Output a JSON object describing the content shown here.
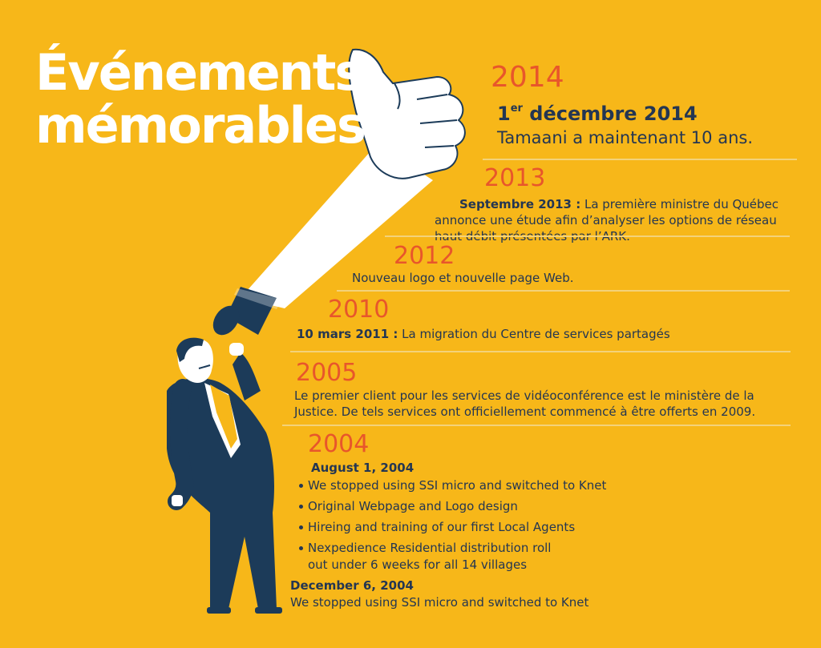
{
  "title": {
    "line1": "Événements",
    "line2": "mémorables"
  },
  "events": {
    "y2014": {
      "year": "2014",
      "date_main": "1",
      "date_sup": "er",
      "date_rest": " décembre 2014",
      "note": "Tamaani a maintenant 10 ans."
    },
    "y2013": {
      "year": "2013",
      "date": "Septembre 2013 :",
      "line1": " La première ministre du Québec",
      "line2": "annonce une étude afin d’analyser les options de réseau",
      "line3": "haut débit présentées par l’ARK."
    },
    "y2012": {
      "year": "2012",
      "text": "Nouveau logo et nouvelle page Web."
    },
    "y2010": {
      "year": "2010",
      "date": "10 mars 2011 :",
      "text": " La migration du Centre de services partagés"
    },
    "y2005": {
      "year": "2005",
      "line1": "Le premier client pour les services de vidéoconférence est le ministère de la",
      "line2": "Justice. De tels services ont officiellement commencé à être offerts en 2009."
    },
    "y2004": {
      "year": "2004",
      "date1": "August 1, 2004",
      "bullets": [
        "We stopped using SSI micro and switched to Knet",
        "Original Webpage and Logo design",
        "Hireing and training of our first Local Agents",
        "Nexpedience Residential distribution roll",
        "out under 6 weeks for all 14 villages"
      ],
      "date2": "December 6, 2004",
      "text2": "We stopped using SSI micro and switched to Knet"
    }
  },
  "colors": {
    "background": "#f7b719",
    "year": "#e8562b",
    "text": "#243652",
    "title": "#ffffff"
  },
  "illustration": {
    "icon": "man-with-megaphone-thumbs-up-icon"
  }
}
